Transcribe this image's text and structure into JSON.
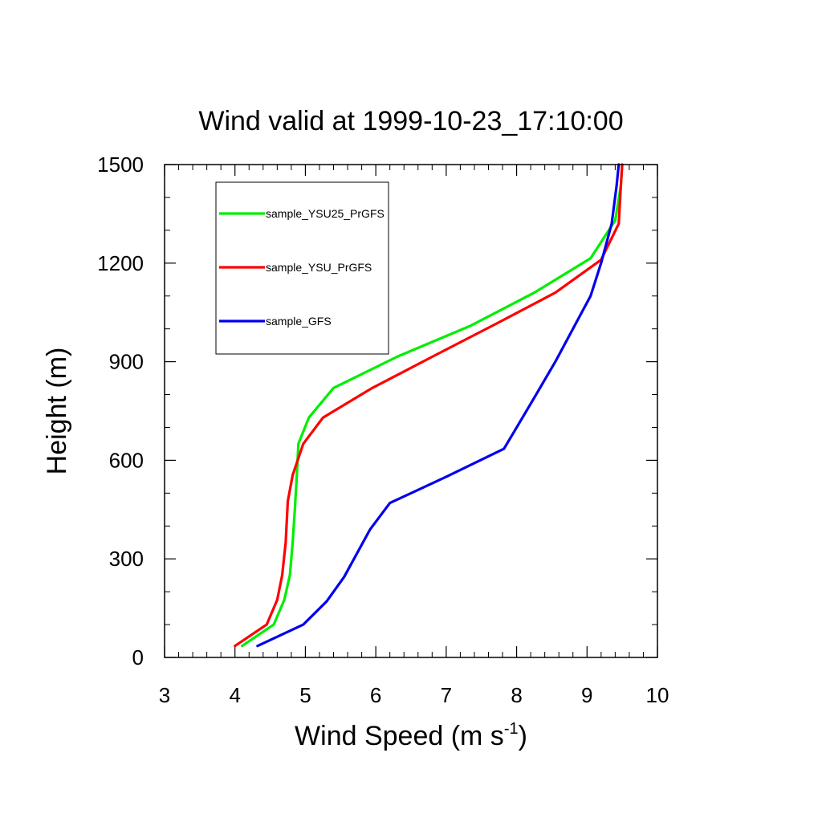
{
  "chart_data": {
    "type": "line",
    "title": "Wind valid at 1999-10-23_17:10:00",
    "xlabel": "Wind Speed (m s",
    "xlabel_superscript": "-1",
    "xlabel_close": ")",
    "ylabel": "Height (m)",
    "xlim": [
      3,
      10
    ],
    "ylim": [
      0,
      1500
    ],
    "x_ticks": [
      "3",
      "4",
      "5",
      "6",
      "7",
      "8",
      "9",
      "10"
    ],
    "y_ticks": [
      "0",
      "300",
      "600",
      "900",
      "1200",
      "1500"
    ],
    "grid": false,
    "legend_position": "top-left",
    "series": [
      {
        "name": "sample_YSU25_PrGFS",
        "color": "#00ee00",
        "points": [
          [
            4.1,
            35
          ],
          [
            4.55,
            100
          ],
          [
            4.7,
            175
          ],
          [
            4.78,
            250
          ],
          [
            4.82,
            350
          ],
          [
            4.85,
            450
          ],
          [
            4.88,
            560
          ],
          [
            4.9,
            650
          ],
          [
            5.05,
            730
          ],
          [
            5.4,
            820
          ],
          [
            6.3,
            915
          ],
          [
            7.35,
            1010
          ],
          [
            8.25,
            1110
          ],
          [
            9.05,
            1215
          ],
          [
            9.4,
            1330
          ],
          [
            9.48,
            1435
          ],
          [
            9.5,
            1500
          ]
        ]
      },
      {
        "name": "sample_YSU_PrGFS",
        "color": "#ff0000",
        "points": [
          [
            4.0,
            35
          ],
          [
            4.45,
            100
          ],
          [
            4.6,
            175
          ],
          [
            4.67,
            250
          ],
          [
            4.72,
            350
          ],
          [
            4.75,
            475
          ],
          [
            4.82,
            555
          ],
          [
            4.97,
            650
          ],
          [
            5.25,
            730
          ],
          [
            5.95,
            820
          ],
          [
            6.8,
            915
          ],
          [
            7.75,
            1020
          ],
          [
            8.55,
            1110
          ],
          [
            9.2,
            1210
          ],
          [
            9.45,
            1320
          ],
          [
            9.48,
            1435
          ],
          [
            9.5,
            1500
          ]
        ]
      },
      {
        "name": "sample_GFS",
        "color": "#0000ee",
        "points": [
          [
            4.32,
            35
          ],
          [
            4.97,
            100
          ],
          [
            5.3,
            170
          ],
          [
            5.55,
            245
          ],
          [
            5.92,
            390
          ],
          [
            6.2,
            470
          ],
          [
            7.0,
            550
          ],
          [
            7.82,
            635
          ],
          [
            8.25,
            790
          ],
          [
            8.55,
            900
          ],
          [
            8.8,
            1000
          ],
          [
            9.05,
            1100
          ],
          [
            9.2,
            1200
          ],
          [
            9.35,
            1320
          ],
          [
            9.42,
            1435
          ],
          [
            9.45,
            1500
          ]
        ]
      }
    ]
  }
}
